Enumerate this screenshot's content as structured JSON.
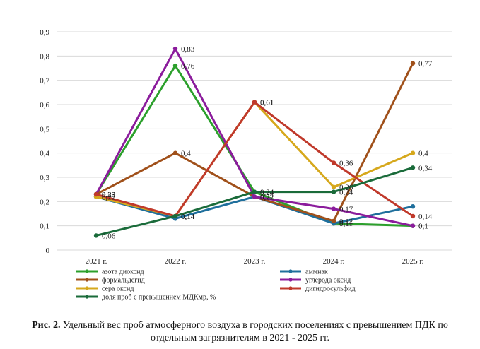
{
  "chart_data": {
    "type": "line",
    "categories": [
      "2021 г.",
      "2022 г.",
      "2023 г.",
      "2024 г.",
      "2025 г."
    ],
    "ylim": [
      0,
      0.9
    ],
    "yticks": [
      "0",
      "0,1",
      "0,2",
      "0,3",
      "0,4",
      "0,5",
      "0,6",
      "0,7",
      "0,8",
      "0,9"
    ],
    "grid": "horizontal",
    "legend_position": "bottom",
    "series": [
      {
        "name": "азота диоксид",
        "color": "#2ca02c",
        "values": [
          0.23,
          0.76,
          0.24,
          0.11,
          0.1
        ],
        "labels": [
          "0,23",
          "0,76",
          "0,24",
          "0,11",
          "0,1"
        ]
      },
      {
        "name": "аммиак",
        "color": "#1f6f9c",
        "values": [
          0.22,
          0.13,
          0.22,
          0.11,
          0.18
        ],
        "labels": [
          "0,22",
          "",
          "0,22",
          "0,11",
          ""
        ]
      },
      {
        "name": "формальдегид",
        "color": "#a0501a",
        "values": [
          0.23,
          0.4,
          0.22,
          0.12,
          0.77
        ],
        "labels": [
          "0,23",
          "0,4",
          "0,22",
          "0,12",
          "0,77"
        ]
      },
      {
        "name": "углерода оксид",
        "color": "#8b1c9c",
        "values": [
          0.23,
          0.83,
          0.22,
          0.17,
          0.1
        ],
        "labels": [
          "0,23",
          "0,83",
          "0,22",
          "0,17",
          "0,1"
        ]
      },
      {
        "name": "сера оксид",
        "color": "#d6a81c",
        "values": [
          0.22,
          0.14,
          0.61,
          0.26,
          0.4
        ],
        "labels": [
          "0,22",
          "0,14",
          "0,61",
          "0,26",
          "0,4"
        ]
      },
      {
        "name": "дигидросульфид",
        "color": "#c0392b",
        "values": [
          0.23,
          0.14,
          0.61,
          0.36,
          0.14
        ],
        "labels": [
          "0,23",
          "0,14",
          "0,61",
          "0,36",
          "0,14"
        ]
      },
      {
        "name": "доля проб с превышением МДКмр, %",
        "color": "#1a6b3a",
        "values": [
          0.06,
          0.14,
          0.24,
          0.24,
          0.34
        ],
        "labels": [
          "0,06",
          "0,14",
          "0,24",
          "0,24",
          "0,34"
        ]
      }
    ]
  },
  "caption": {
    "prefix": "Рис. 2.",
    "text": " Удельный вес проб атмосферного воздуха в городских поселениях с превышением ПДК по отдельным загрязнителям в 2021 - 2025 гг."
  }
}
